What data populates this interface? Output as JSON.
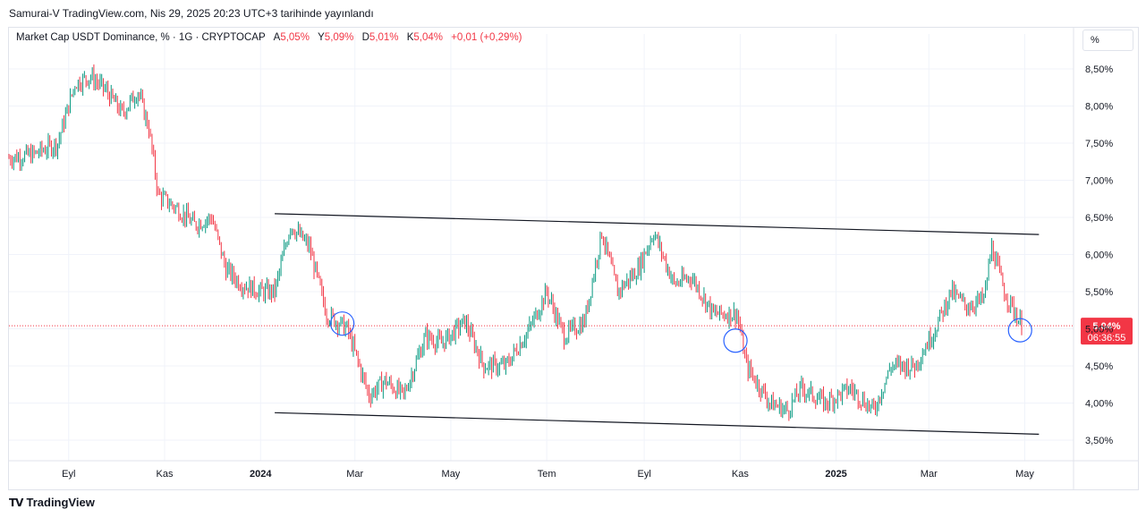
{
  "header": {
    "title": "Samurai-V TradingView.com, Nis 29, 2025 20:23 UTC+3 tarihinde yayınlandı"
  },
  "legend": {
    "symbol": "Market Cap USDT Dominance, % · 1G · CRYPTOCAP",
    "open_label": "A",
    "open_value": "5,05%",
    "high_label": "Y",
    "high_value": "5,09%",
    "low_label": "D",
    "low_value": "5,01%",
    "close_label": "K",
    "close_value": "5,04%",
    "change": "+0,01 (+0,29%)"
  },
  "unit_button": {
    "label": "%"
  },
  "price_label": {
    "value": "5,04%",
    "countdown": "06:36:55"
  },
  "footer": {
    "brand": "TradingView"
  },
  "colors": {
    "up": "#089981",
    "down": "#f23645",
    "grid": "#f0f3fa",
    "trendline": "#131722",
    "circle": "#2962ff",
    "price_line": "#f23645"
  },
  "chart_data": {
    "type": "candlestick",
    "title": "Market Cap USDT Dominance, % · 1G · CRYPTOCAP",
    "y_unit": "%",
    "y_ticks": [
      "8,50%",
      "8,00%",
      "7,50%",
      "7,00%",
      "6,50%",
      "6,00%",
      "5,50%",
      "5,00%",
      "4,50%",
      "4,00%",
      "3,50%"
    ],
    "y_tick_values": [
      8.5,
      8.0,
      7.5,
      7.0,
      6.5,
      6.0,
      5.5,
      5.0,
      4.5,
      4.0,
      3.5
    ],
    "ylim": [
      3.2,
      8.9
    ],
    "x_ticks": [
      {
        "label": "Eyl",
        "date": "2023-09-01",
        "bold": false
      },
      {
        "label": "Kas",
        "date": "2023-11-01",
        "bold": false
      },
      {
        "label": "2024",
        "date": "2024-01-01",
        "bold": true
      },
      {
        "label": "Mar",
        "date": "2024-03-01",
        "bold": false
      },
      {
        "label": "May",
        "date": "2024-05-01",
        "bold": false
      },
      {
        "label": "Tem",
        "date": "2024-07-01",
        "bold": false
      },
      {
        "label": "Eyl",
        "date": "2024-09-01",
        "bold": false
      },
      {
        "label": "Kas",
        "date": "2024-11-01",
        "bold": false
      },
      {
        "label": "2025",
        "date": "2025-01-01",
        "bold": true
      },
      {
        "label": "Mar",
        "date": "2025-03-01",
        "bold": false
      },
      {
        "label": "May",
        "date": "2025-05-01",
        "bold": false
      }
    ],
    "x_range": [
      "2023-07-25",
      "2025-06-01"
    ],
    "close_path": [
      {
        "date": "2023-07-25",
        "value": 7.3
      },
      {
        "date": "2023-08-10",
        "value": 7.35
      },
      {
        "date": "2023-08-25",
        "value": 7.5
      },
      {
        "date": "2023-09-05",
        "value": 8.3
      },
      {
        "date": "2023-09-15",
        "value": 8.4
      },
      {
        "date": "2023-09-25",
        "value": 8.2
      },
      {
        "date": "2023-10-05",
        "value": 7.9
      },
      {
        "date": "2023-10-15",
        "value": 8.2
      },
      {
        "date": "2023-10-22",
        "value": 7.7
      },
      {
        "date": "2023-10-28",
        "value": 6.8
      },
      {
        "date": "2023-11-10",
        "value": 6.6
      },
      {
        "date": "2023-11-20",
        "value": 6.4
      },
      {
        "date": "2023-12-01",
        "value": 6.5
      },
      {
        "date": "2023-12-10",
        "value": 5.8
      },
      {
        "date": "2023-12-20",
        "value": 5.6
      },
      {
        "date": "2024-01-01",
        "value": 5.5
      },
      {
        "date": "2024-01-10",
        "value": 5.5
      },
      {
        "date": "2024-01-20",
        "value": 6.4
      },
      {
        "date": "2024-02-01",
        "value": 6.1
      },
      {
        "date": "2024-02-12",
        "value": 5.2
      },
      {
        "date": "2024-02-25",
        "value": 5.0
      },
      {
        "date": "2024-03-10",
        "value": 4.1
      },
      {
        "date": "2024-03-20",
        "value": 4.3
      },
      {
        "date": "2024-04-01",
        "value": 4.1
      },
      {
        "date": "2024-04-15",
        "value": 4.9
      },
      {
        "date": "2024-04-25",
        "value": 4.8
      },
      {
        "date": "2024-05-10",
        "value": 5.1
      },
      {
        "date": "2024-05-22",
        "value": 4.5
      },
      {
        "date": "2024-06-05",
        "value": 4.5
      },
      {
        "date": "2024-06-20",
        "value": 5.0
      },
      {
        "date": "2024-07-01",
        "value": 5.5
      },
      {
        "date": "2024-07-12",
        "value": 4.9
      },
      {
        "date": "2024-07-25",
        "value": 5.1
      },
      {
        "date": "2024-08-05",
        "value": 6.3
      },
      {
        "date": "2024-08-15",
        "value": 5.5
      },
      {
        "date": "2024-08-28",
        "value": 5.8
      },
      {
        "date": "2024-09-07",
        "value": 6.3
      },
      {
        "date": "2024-09-20",
        "value": 5.6
      },
      {
        "date": "2024-10-01",
        "value": 5.7
      },
      {
        "date": "2024-10-15",
        "value": 5.2
      },
      {
        "date": "2024-10-30",
        "value": 5.2
      },
      {
        "date": "2024-11-05",
        "value": 4.5
      },
      {
        "date": "2024-11-20",
        "value": 4.0
      },
      {
        "date": "2024-12-01",
        "value": 3.9
      },
      {
        "date": "2024-12-10",
        "value": 4.2
      },
      {
        "date": "2024-12-25",
        "value": 4.0
      },
      {
        "date": "2025-01-10",
        "value": 4.2
      },
      {
        "date": "2025-01-25",
        "value": 3.9
      },
      {
        "date": "2025-02-05",
        "value": 4.5
      },
      {
        "date": "2025-02-20",
        "value": 4.5
      },
      {
        "date": "2025-03-05",
        "value": 5.0
      },
      {
        "date": "2025-03-15",
        "value": 5.5
      },
      {
        "date": "2025-03-25",
        "value": 5.3
      },
      {
        "date": "2025-04-05",
        "value": 5.4
      },
      {
        "date": "2025-04-10",
        "value": 6.1
      },
      {
        "date": "2025-04-18",
        "value": 5.5
      },
      {
        "date": "2025-04-29",
        "value": 5.04
      }
    ],
    "trendlines": [
      {
        "from": {
          "date": "2024-01-10",
          "value": 6.55
        },
        "to": {
          "date": "2025-05-10",
          "value": 6.27
        }
      },
      {
        "from": {
          "date": "2024-01-10",
          "value": 3.87
        },
        "to": {
          "date": "2025-05-10",
          "value": 3.58
        }
      }
    ],
    "circles": [
      {
        "date": "2024-02-22",
        "value": 5.07
      },
      {
        "date": "2024-10-29",
        "value": 4.84
      },
      {
        "date": "2025-04-28",
        "value": 4.98
      }
    ],
    "last_price": 5.04
  }
}
